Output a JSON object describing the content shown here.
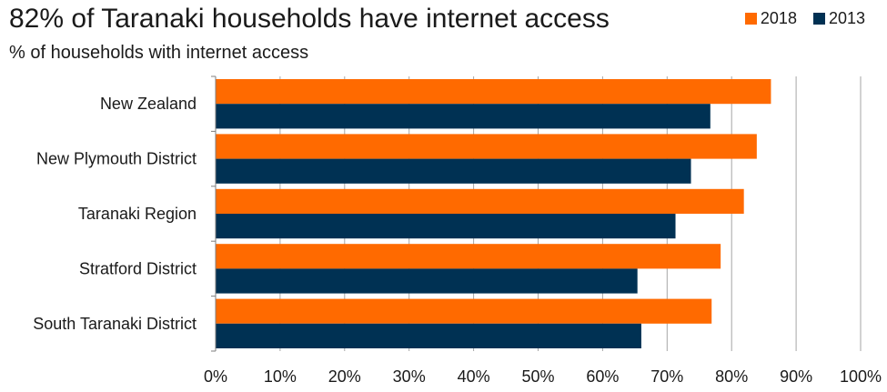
{
  "chart_data": {
    "type": "bar",
    "orientation": "horizontal",
    "title": "82% of Taranaki households have internet access",
    "subtitle": "% of households with internet access",
    "categories": [
      "New Zealand",
      "New Plymouth District",
      "Taranaki Region",
      "Stratford District",
      "South Taranaki District"
    ],
    "series": [
      {
        "name": "2018",
        "color": "#FF6A00",
        "values": [
          86.1,
          83.9,
          81.9,
          78.3,
          76.9
        ]
      },
      {
        "name": "2013",
        "color": "#003153",
        "values": [
          76.7,
          73.7,
          71.3,
          65.4,
          66.0
        ]
      }
    ],
    "xlim": [
      0,
      100
    ],
    "x_ticks": [
      "0%",
      "10%",
      "20%",
      "30%",
      "40%",
      "50%",
      "60%",
      "70%",
      "80%",
      "90%",
      "100%"
    ],
    "grid": true,
    "legend_position": "top-right"
  }
}
